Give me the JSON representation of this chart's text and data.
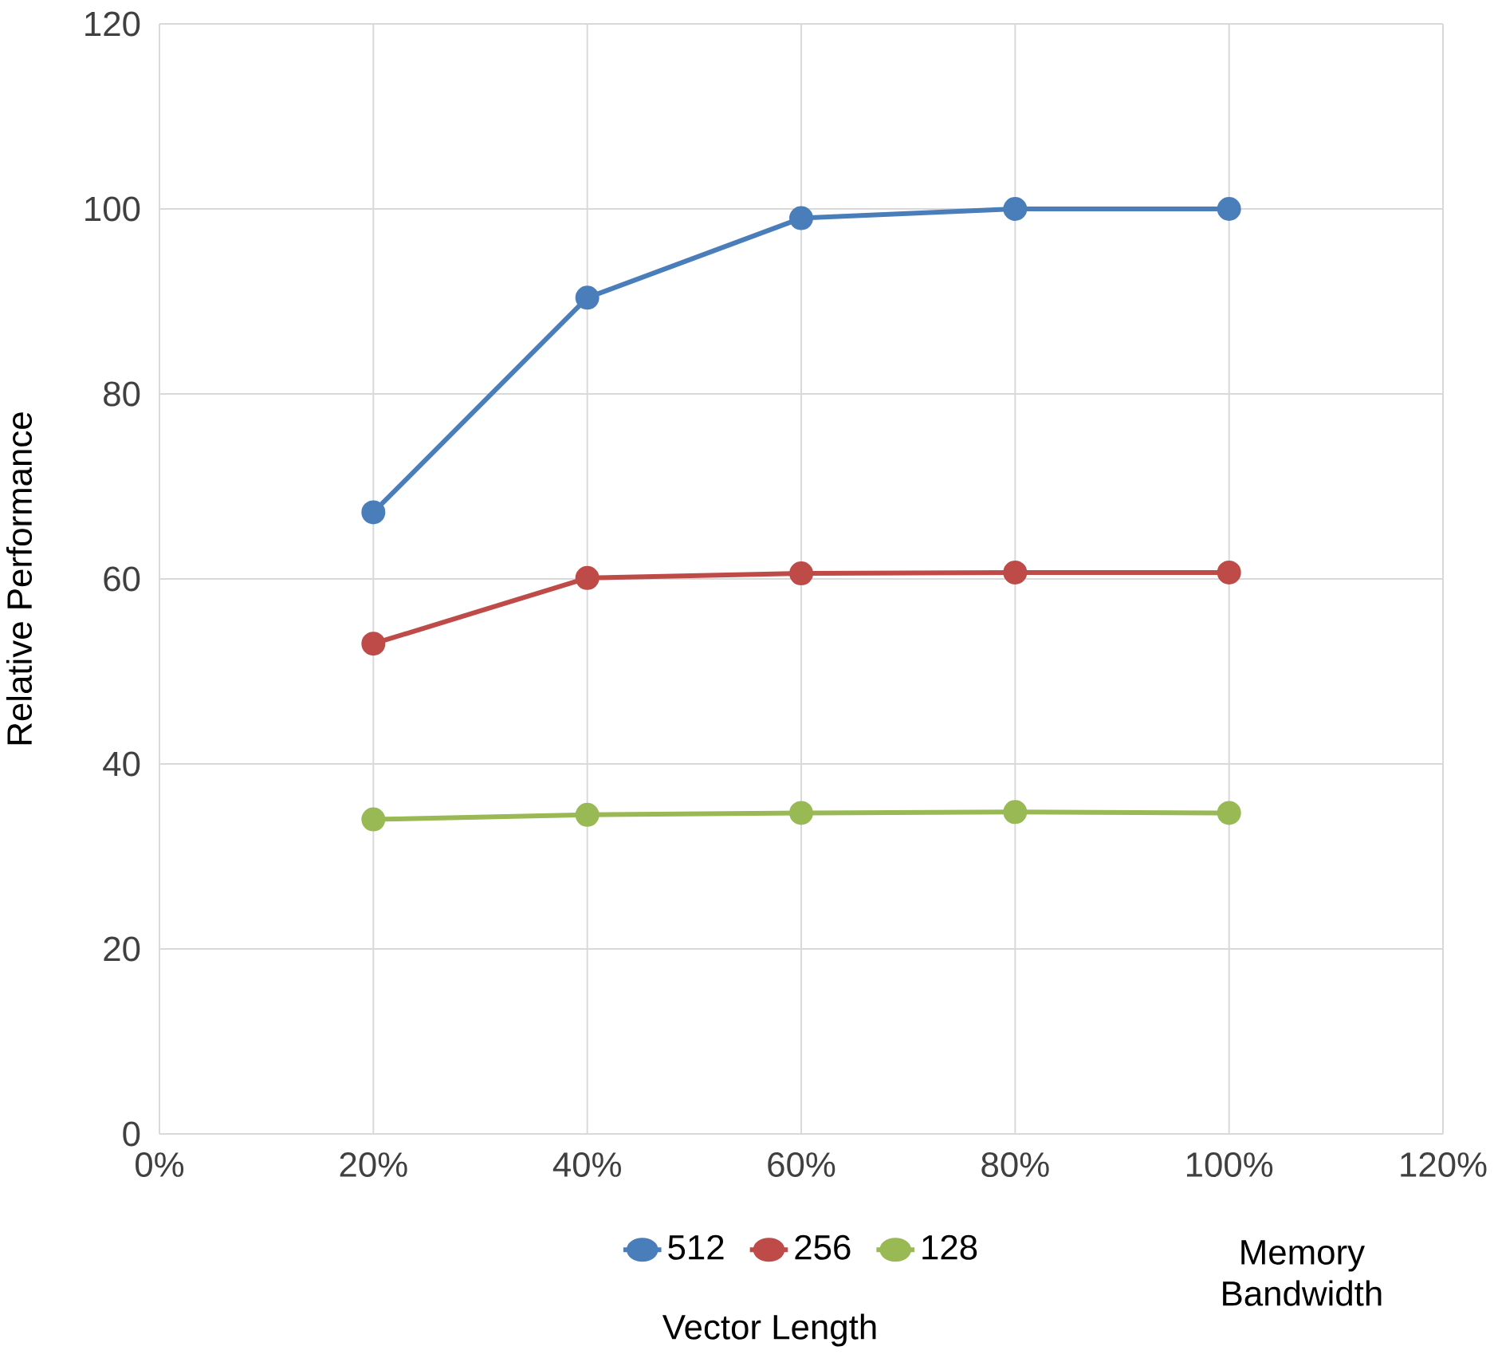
{
  "chart_data": {
    "type": "line",
    "xlabel": "Memory Bandwidth",
    "ylabel": "Relative Performance",
    "legend_title": "Vector Length",
    "x": [
      20,
      40,
      60,
      80,
      100
    ],
    "series": [
      {
        "name": "512",
        "color": "#4a7ebb",
        "values": [
          67.2,
          90.4,
          99,
          100,
          100
        ]
      },
      {
        "name": "256",
        "color": "#be4b48",
        "values": [
          53,
          60.1,
          60.6,
          60.7,
          60.7
        ]
      },
      {
        "name": "128",
        "color": "#98b954",
        "values": [
          34,
          34.5,
          34.7,
          34.8,
          34.7
        ]
      }
    ],
    "xlim": [
      0,
      120
    ],
    "ylim": [
      0,
      120
    ],
    "xticks": [
      {
        "value": 0,
        "label": "0%"
      },
      {
        "value": 20,
        "label": "20%"
      },
      {
        "value": 40,
        "label": "40%"
      },
      {
        "value": 60,
        "label": "60%"
      },
      {
        "value": 80,
        "label": "80%"
      },
      {
        "value": 100,
        "label": "100%"
      },
      {
        "value": 120,
        "label": "120%"
      }
    ],
    "yticks": [
      0,
      20,
      40,
      60,
      80,
      100,
      120
    ],
    "grid": true,
    "legend": "bottom",
    "marker": "circle",
    "line_style": "solid"
  }
}
